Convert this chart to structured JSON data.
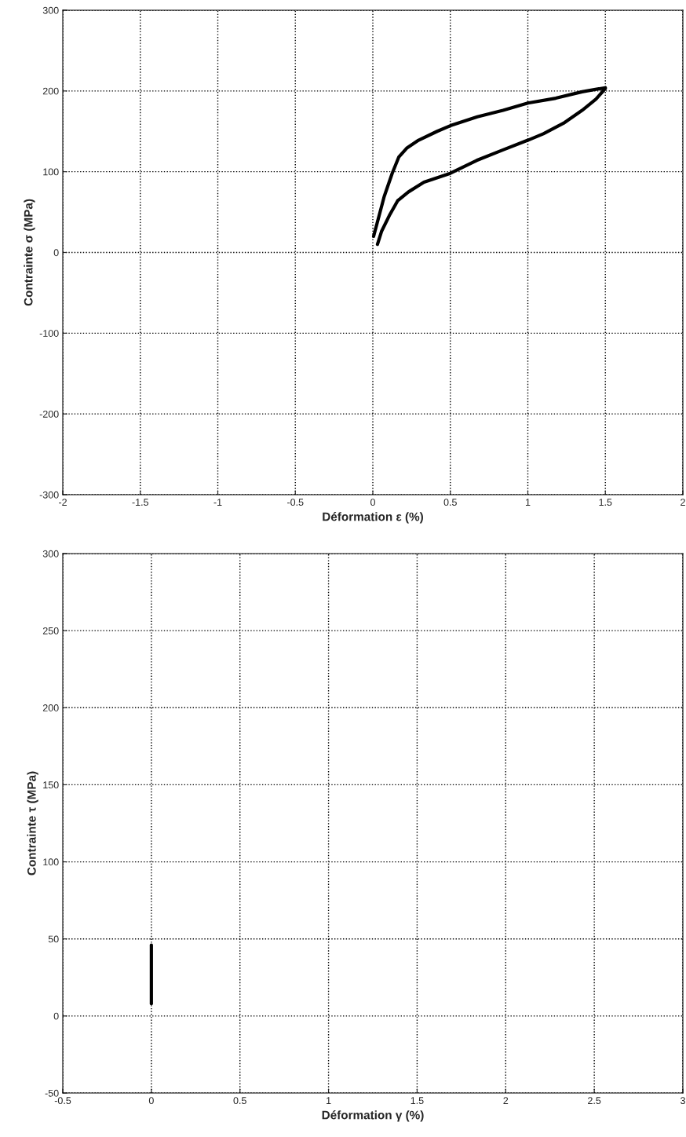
{
  "chart_data": [
    {
      "type": "line",
      "xlabel": "Déformation ε (%)",
      "ylabel": "Contrainte σ (MPa)",
      "xlim": [
        -2,
        2
      ],
      "ylim": [
        -300,
        300
      ],
      "xticks": [
        -2,
        -1.5,
        -1,
        -0.5,
        0,
        0.5,
        1,
        1.5,
        2
      ],
      "yticks": [
        -300,
        -200,
        -100,
        0,
        100,
        200,
        300
      ],
      "grid": true,
      "series": [
        {
          "color": "#000000",
          "x": [
            0.005,
            0.073,
            0.125,
            0.167,
            0.218,
            0.295,
            0.415,
            0.5,
            0.674,
            0.84,
            1.0,
            1.18,
            1.35,
            1.5,
            1.5,
            1.44,
            1.35,
            1.23,
            1.1,
            1.0,
            0.84,
            0.67,
            0.5,
            0.33,
            0.23,
            0.16,
            0.11,
            0.056,
            0.03
          ],
          "values": [
            20,
            69,
            98,
            118,
            129,
            139,
            150,
            157,
            168,
            176,
            185,
            191,
            199,
            204,
            203,
            190,
            176,
            160,
            147,
            139,
            127,
            114,
            98,
            87,
            75,
            64,
            47,
            26,
            10
          ]
        }
      ]
    },
    {
      "type": "line",
      "xlabel": "Déformation γ (%)",
      "ylabel": "Contrainte τ (MPa)",
      "xlim": [
        -0.5,
        3
      ],
      "ylim": [
        -50,
        300
      ],
      "xticks": [
        -0.5,
        0,
        0.5,
        1,
        1.5,
        2,
        2.5,
        3
      ],
      "yticks": [
        -50,
        0,
        50,
        100,
        150,
        200,
        250,
        300
      ],
      "grid": true,
      "series": [
        {
          "color": "#000000",
          "x": [
            0,
            0
          ],
          "values": [
            8,
            46
          ]
        }
      ]
    }
  ]
}
